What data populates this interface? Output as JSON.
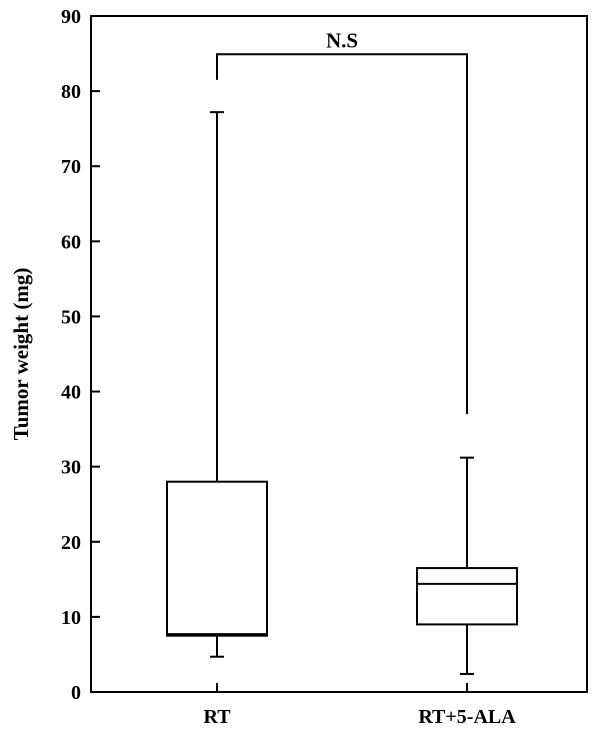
{
  "chart_data": {
    "type": "box",
    "title": "",
    "xlabel": "",
    "ylabel": "Tumor weight (mg)",
    "ylim": [
      0,
      90
    ],
    "yticks": [
      "0",
      "10",
      "20",
      "30",
      "40",
      "50",
      "60",
      "70",
      "80",
      "90"
    ],
    "grid": false,
    "legend": "none",
    "categories": [
      "RT",
      "RT+5-ALA"
    ],
    "boxes": [
      {
        "category": "RT",
        "min": 4.7,
        "q1": 7.5,
        "median": 7.7,
        "q3": 28.0,
        "max": 77.2
      },
      {
        "category": "RT+5-ALA",
        "min": 2.4,
        "q1": 9.0,
        "median": 14.4,
        "q3": 16.5,
        "max": 31.2
      }
    ],
    "significance": {
      "label": "N.S",
      "from": "RT",
      "to": "RT+5-ALA",
      "left_drop_to": 81.5,
      "right_drop_to": 37.0,
      "bar_at": 84.9
    }
  },
  "colors": {
    "line": "#000000",
    "background": "#ffffff"
  }
}
